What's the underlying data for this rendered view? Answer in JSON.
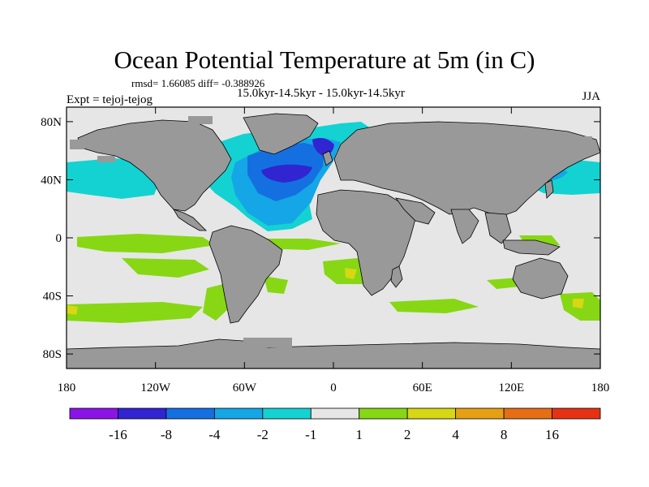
{
  "chart_data": {
    "type": "heatmap",
    "title": "Ocean Potential Temperature at 5m (in C)",
    "stats_line": "rmsd= 1.66085 diff= -0.388926",
    "period_label": "15.0kyr-14.5kyr - 15.0kyr-14.5kyr",
    "experiment_label": "Expt = tejoj-tejog",
    "season_label": "JJA",
    "x_axis": {
      "range": [
        -180,
        180
      ],
      "ticks": [
        -180,
        -120,
        -60,
        0,
        60,
        120,
        180
      ],
      "tick_labels": [
        "180",
        "120W",
        "60W",
        "0",
        "60E",
        "120E",
        "180"
      ]
    },
    "y_axis": {
      "range": [
        -90,
        90
      ],
      "ticks": [
        80,
        40,
        0,
        -40,
        -80
      ],
      "tick_labels": [
        "80N",
        "40N",
        "0",
        "40S",
        "80S"
      ]
    },
    "colorbar": {
      "colors": [
        "#8a14e6",
        "#3025d0",
        "#1470e0",
        "#14a6e6",
        "#14d2d2",
        "#e6e6e6",
        "#87d714",
        "#d7d714",
        "#e6a014",
        "#e66e14",
        "#e63214"
      ],
      "boundaries": [
        -16,
        -8,
        -4,
        -2,
        -1,
        1,
        2,
        4,
        8,
        16
      ],
      "boundary_labels": [
        "-16",
        "-8",
        "-4",
        "-2",
        "-1",
        "1",
        "2",
        "4",
        "8",
        "16"
      ]
    },
    "land_color": "#999999",
    "neutral_color": "#e6e6e6"
  }
}
